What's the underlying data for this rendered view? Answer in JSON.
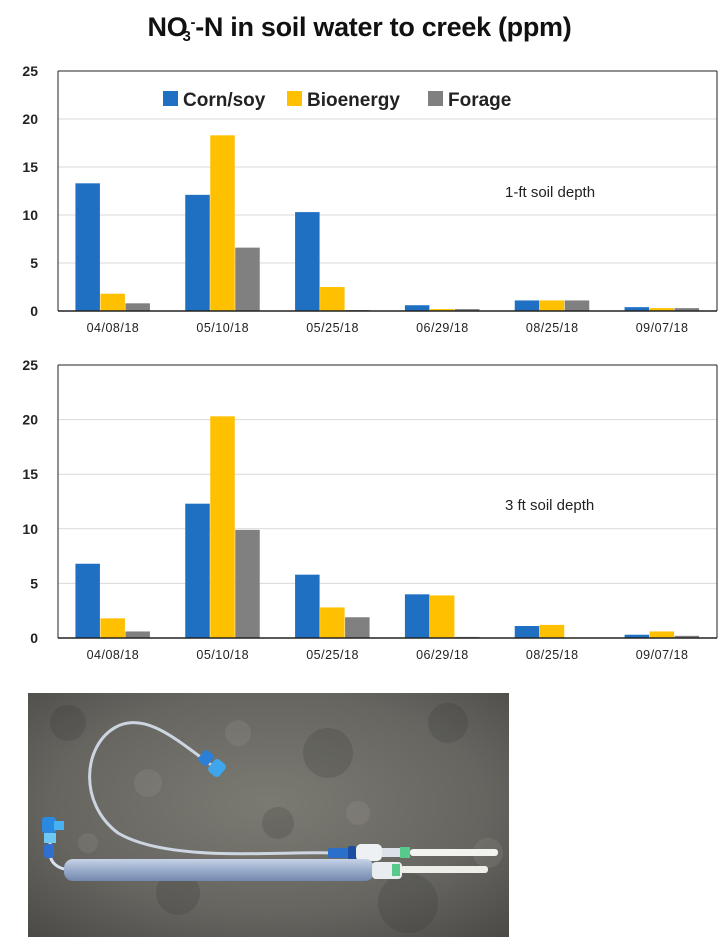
{
  "title": {
    "prefix": "NO",
    "sub": "3",
    "sup": "-",
    "suffix": "-N  in soil water to creek (ppm)"
  },
  "colors": {
    "corn_soy": "#1f6fc2",
    "bioenergy": "#ffc000",
    "forage": "#808080",
    "grid": "#d9d9d9",
    "axis": "#222222"
  },
  "chart_data": [
    {
      "type": "bar",
      "categories": [
        "04/08/18",
        "05/10/18",
        "05/25/18",
        "06/29/18",
        "08/25/18",
        "09/07/18"
      ],
      "series": [
        {
          "name": "Corn/soy",
          "values": [
            13.3,
            12.1,
            10.3,
            0.6,
            1.1,
            0.4
          ]
        },
        {
          "name": "Bioenergy",
          "values": [
            1.8,
            18.3,
            2.5,
            0.2,
            1.1,
            0.3
          ]
        },
        {
          "name": "Forage",
          "values": [
            0.8,
            6.6,
            0.1,
            0.2,
            1.1,
            0.3
          ]
        }
      ],
      "ylim": [
        0,
        25
      ],
      "yticks": [
        "0",
        "5",
        "10",
        "15",
        "20",
        "25"
      ],
      "annotation": "1-ft soil depth",
      "legend": "top-center",
      "grid": true
    },
    {
      "type": "bar",
      "categories": [
        "04/08/18",
        "05/10/18",
        "05/25/18",
        "06/29/18",
        "08/25/18",
        "09/07/18"
      ],
      "series": [
        {
          "name": "Corn/soy",
          "values": [
            6.8,
            12.3,
            5.8,
            4.0,
            1.1,
            0.3
          ]
        },
        {
          "name": "Bioenergy",
          "values": [
            1.8,
            20.3,
            2.8,
            3.9,
            1.2,
            0.6
          ]
        },
        {
          "name": "Forage",
          "values": [
            0.6,
            9.9,
            1.9,
            0.1,
            0.0,
            0.2
          ]
        }
      ],
      "ylim": [
        0,
        25
      ],
      "yticks": [
        "0",
        "5",
        "10",
        "15",
        "20",
        "25"
      ],
      "annotation": "3 ft soil depth",
      "grid": true
    }
  ]
}
